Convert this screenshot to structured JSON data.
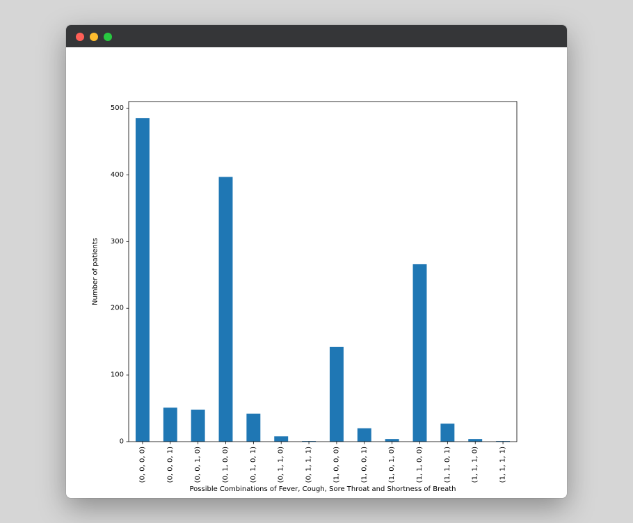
{
  "window": {
    "colors": {
      "titlebar": "#353638",
      "close": "#fe5f57",
      "minimize": "#febc2e",
      "maximize": "#28c840"
    }
  },
  "chart_data": {
    "type": "bar",
    "categories": [
      "(0, 0, 0, 0)",
      "(0, 0, 0, 1)",
      "(0, 0, 1, 0)",
      "(0, 1, 0, 0)",
      "(0, 1, 0, 1)",
      "(0, 1, 1, 0)",
      "(0, 1, 1, 1)",
      "(1, 0, 0, 0)",
      "(1, 0, 0, 1)",
      "(1, 0, 1, 0)",
      "(1, 1, 0, 0)",
      "(1, 1, 0, 1)",
      "(1, 1, 1, 0)",
      "(1, 1, 1, 1)"
    ],
    "values": [
      485,
      51,
      48,
      397,
      42,
      8,
      1,
      142,
      20,
      4,
      266,
      27,
      4,
      1
    ],
    "title": "",
    "xlabel": "Possible Combinations of Fever, Cough, Sore Throat and Shortness of Breath",
    "ylabel": "Number of patients",
    "ylim": [
      0,
      510
    ],
    "yticks": [
      0,
      100,
      200,
      300,
      400,
      500
    ],
    "grid": false,
    "bar_color": "#1f77b4"
  }
}
